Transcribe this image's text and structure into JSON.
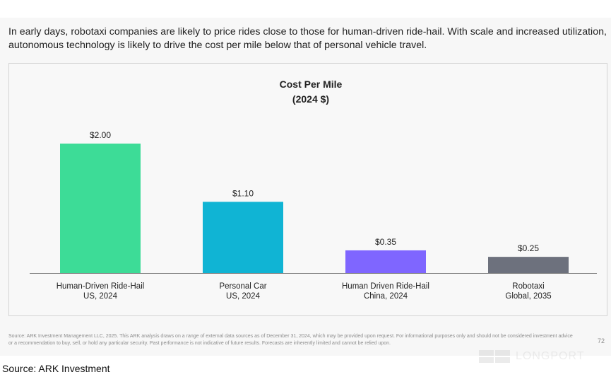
{
  "intro_text": "In early days, robotaxi companies are likely to price rides close to those for human-driven ride-hail. With scale and increased utilization, autonomous technology is likely to drive the cost per mile below that of personal vehicle travel.",
  "chart_data": {
    "type": "bar",
    "title": "Cost Per Mile",
    "subtitle": "(2024 $)",
    "categories": [
      [
        "Human-Driven Ride-Hail",
        "US, 2024"
      ],
      [
        "Personal Car",
        "US, 2024"
      ],
      [
        "Human Driven Ride-Hail",
        "China, 2024"
      ],
      [
        "Robotaxi",
        "Global, 2035"
      ]
    ],
    "values": [
      2.0,
      1.1,
      0.35,
      0.25
    ],
    "data_labels": [
      "$2.00",
      "$1.10",
      "$0.35",
      "$0.25"
    ],
    "colors": [
      "#3ddc97",
      "#10b4d4",
      "#7f66ff",
      "#6d717d"
    ],
    "ylim": [
      0,
      2.0
    ],
    "xlabel": "",
    "ylabel": "",
    "grid": false,
    "legend": "none"
  },
  "footnote": "Source: ARK Investment Management LLC, 2025. This ARK analysis draws on a range of external data sources as of December 31, 2024, which may be provided upon request. For informational purposes only and should not be considered investment advice or a recommendation to buy, sell, or hold any particular security. Past performance is not indicative of future results. Forecasts are inherently limited and cannot be relied upon.",
  "page_number": "72",
  "watermark_text": "LONGPORT",
  "source_text": "Source: ARK Investment"
}
